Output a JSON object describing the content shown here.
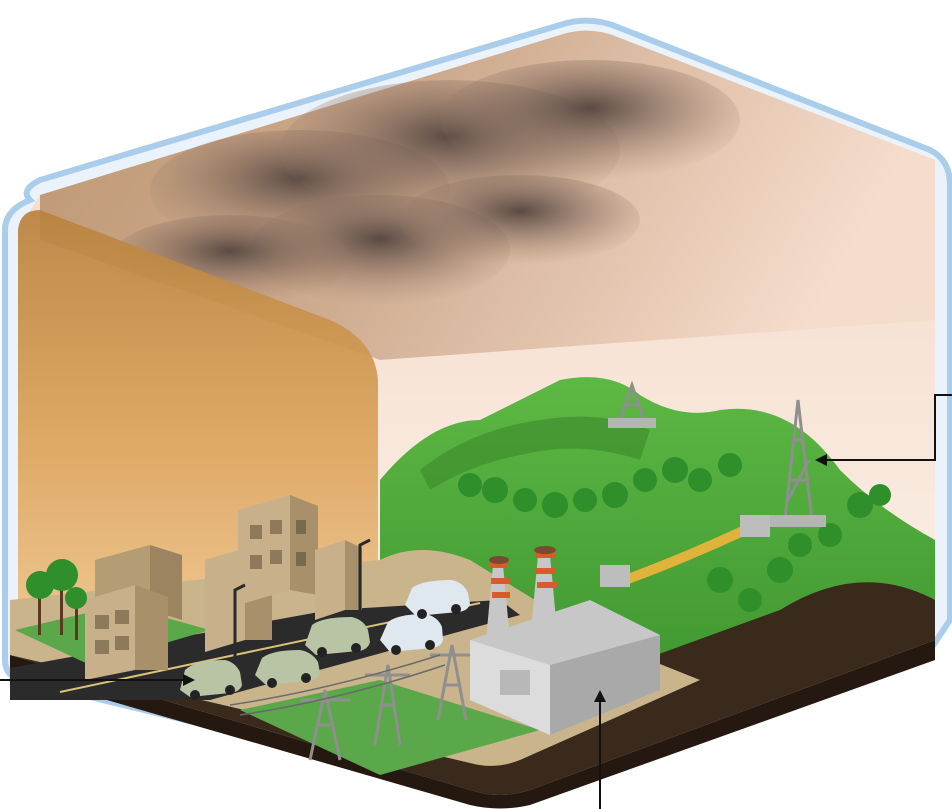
{
  "diagram": {
    "title": "",
    "labels": [],
    "colors": {
      "smog": "#c98a45",
      "sky_light": "#f7e6d6",
      "frame": "#a9cdea",
      "hill_green": "#4fae3a",
      "ground": "#3a2a1c",
      "road": "#2b2b2b",
      "building": "#c8b18a",
      "car": "#b8c4a4",
      "plant_stripe": "#d95a2a",
      "pipeline": "#e0b43a",
      "metal": "#8f8f8f"
    },
    "callouts": [
      {
        "id": "cars",
        "points_to": "car-traffic"
      },
      {
        "id": "oil-rig",
        "points_to": "oil-derrick"
      },
      {
        "id": "power-plant",
        "points_to": "power-plant"
      }
    ]
  }
}
